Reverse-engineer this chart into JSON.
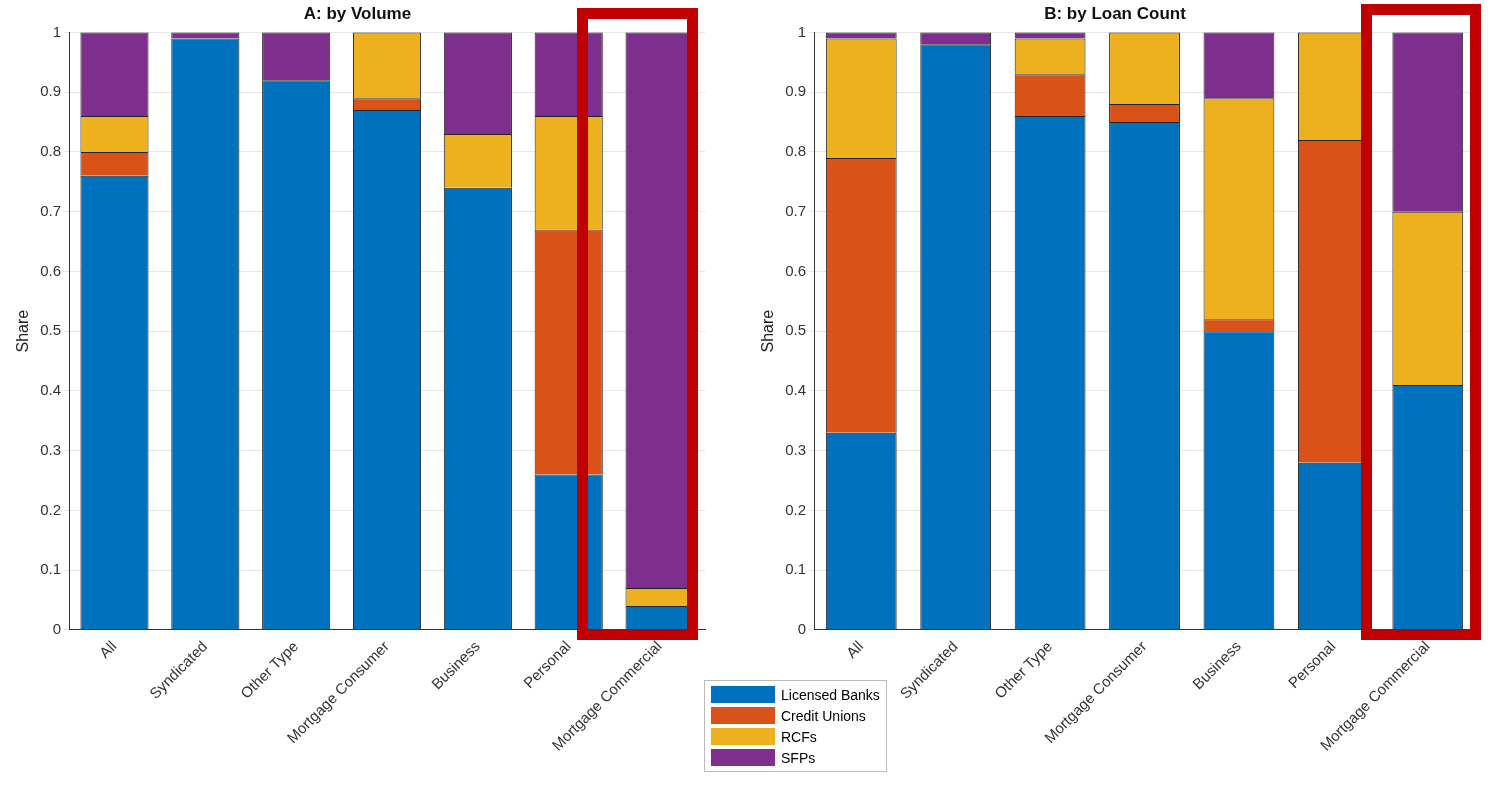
{
  "chart_data": [
    {
      "type": "bar",
      "title": "A: by Volume",
      "ylabel": "Share",
      "stacked": true,
      "grid": "y",
      "legend": "bottom",
      "categories": [
        "All",
        "Syndicated",
        "Other Type",
        "Mortgage Consumer",
        "Business",
        "Personal",
        "Mortgage Commercial"
      ],
      "ylim": [
        0,
        1
      ],
      "yticks": [
        0,
        0.1,
        0.2,
        0.3,
        0.4,
        0.5,
        0.6,
        0.7,
        0.8,
        0.9,
        1
      ],
      "series": [
        {
          "name": "Licensed Banks",
          "color": "#0072bd",
          "values": [
            0.76,
            0.99,
            0.92,
            0.87,
            0.74,
            0.26,
            0.04
          ]
        },
        {
          "name": "Credit Unions",
          "color": "#d95319",
          "values": [
            0.04,
            0,
            0,
            0.02,
            0,
            0.41,
            0
          ]
        },
        {
          "name": "RCFs",
          "color": "#edb120",
          "values": [
            0.06,
            0,
            0,
            0.11,
            0.09,
            0.19,
            0.03
          ]
        },
        {
          "name": "SFPs",
          "color": "#7e2f8e",
          "values": [
            0.14,
            0.01,
            0.08,
            0,
            0.17,
            0.14,
            0.93
          ]
        }
      ]
    },
    {
      "type": "bar",
      "title": "B: by Loan Count",
      "ylabel": "Share",
      "stacked": true,
      "grid": "y",
      "categories": [
        "All",
        "Syndicated",
        "Other Type",
        "Mortgage Consumer",
        "Business",
        "Personal",
        "Mortgage Commercial"
      ],
      "ylim": [
        0,
        1
      ],
      "yticks": [
        0,
        0.1,
        0.2,
        0.3,
        0.4,
        0.5,
        0.6,
        0.7,
        0.8,
        0.9,
        1
      ],
      "series": [
        {
          "color": "#0072bd",
          "values": [
            0.33,
            0.98,
            0.86,
            0.85,
            0.5,
            0.28,
            0.41
          ]
        },
        {
          "color": "#d95319",
          "values": [
            0.46,
            0,
            0.07,
            0.03,
            0.02,
            0.54,
            0
          ]
        },
        {
          "color": "#edb120",
          "values": [
            0.2,
            0,
            0.06,
            0.12,
            0.37,
            0.18,
            0.29
          ]
        },
        {
          "color": "#7e2f8e",
          "values": [
            0.01,
            0.02,
            0.01,
            0,
            0.11,
            0,
            0.3
          ]
        }
      ]
    }
  ]
}
